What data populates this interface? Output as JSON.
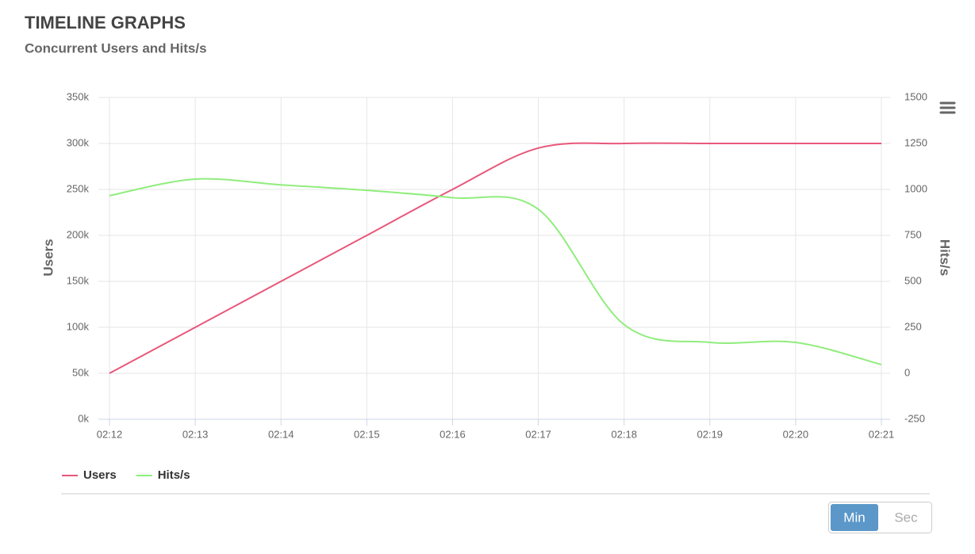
{
  "header": "TIMELINE GRAPHS",
  "controls": {
    "buttons": [
      "Min",
      "Sec"
    ]
  },
  "chart_data": {
    "type": "line",
    "title": "Concurrent Users and Hits/s",
    "y_label": "Users",
    "y2_label": "Hits/s",
    "categories": [
      "02:12",
      "02:13",
      "02:14",
      "02:15",
      "02:16",
      "02:17",
      "02:18",
      "02:19",
      "02:20",
      "02:21"
    ],
    "series": [
      {
        "name": "Users",
        "color": "#e8577a",
        "values": [
          50000,
          100000,
          150000,
          200000,
          250000,
          295000,
          300000,
          300000,
          300000,
          300000
        ]
      },
      {
        "name": "Hits/s",
        "color": "#90ed7d",
        "axis": "y2",
        "values": [
          966,
          1056,
          1025,
          995,
          955,
          892,
          265,
          168,
          168,
          47
        ]
      }
    ],
    "ylim": [
      0,
      350000
    ],
    "yticks": [
      {
        "value": 0,
        "label": "0k"
      },
      {
        "value": 50000,
        "label": "50k"
      },
      {
        "value": 100000,
        "label": "100k"
      },
      {
        "value": 150000,
        "label": "150k"
      },
      {
        "value": 200000,
        "label": "200k"
      },
      {
        "value": 250000,
        "label": "250k"
      },
      {
        "value": 300000,
        "label": "300k"
      },
      {
        "value": 350000,
        "label": "350k"
      }
    ],
    "y2lim": [
      -250,
      1500
    ],
    "y2ticks": [
      -250,
      0,
      250,
      500,
      750,
      1000,
      1250,
      1500
    ],
    "grid": true,
    "legend": "bottom-left"
  }
}
